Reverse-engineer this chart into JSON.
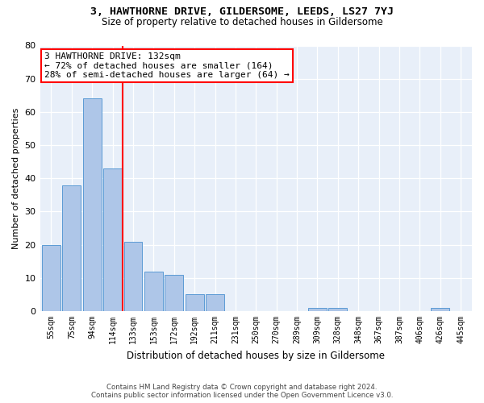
{
  "title": "3, HAWTHORNE DRIVE, GILDERSOME, LEEDS, LS27 7YJ",
  "subtitle": "Size of property relative to detached houses in Gildersome",
  "xlabel": "Distribution of detached houses by size in Gildersome",
  "ylabel": "Number of detached properties",
  "bar_categories": [
    "55sqm",
    "75sqm",
    "94sqm",
    "114sqm",
    "133sqm",
    "153sqm",
    "172sqm",
    "192sqm",
    "211sqm",
    "231sqm",
    "250sqm",
    "270sqm",
    "289sqm",
    "309sqm",
    "328sqm",
    "348sqm",
    "367sqm",
    "387sqm",
    "406sqm",
    "426sqm",
    "445sqm"
  ],
  "bar_values": [
    20,
    38,
    64,
    43,
    21,
    12,
    11,
    5,
    5,
    0,
    0,
    0,
    0,
    1,
    1,
    0,
    0,
    0,
    0,
    1,
    0
  ],
  "bar_color": "#aec6e8",
  "bar_edgecolor": "#5b9bd5",
  "annotation_text": "3 HAWTHORNE DRIVE: 132sqm\n← 72% of detached houses are smaller (164)\n28% of semi-detached houses are larger (64) →",
  "annotation_box_color": "white",
  "annotation_box_edgecolor": "red",
  "vline_x_index": 4.0,
  "vline_color": "red",
  "ylim": [
    0,
    80
  ],
  "yticks": [
    0,
    10,
    20,
    30,
    40,
    50,
    60,
    70,
    80
  ],
  "bg_color": "#e8eff9",
  "footer_line1": "Contains HM Land Registry data © Crown copyright and database right 2024.",
  "footer_line2": "Contains public sector information licensed under the Open Government Licence v3.0."
}
